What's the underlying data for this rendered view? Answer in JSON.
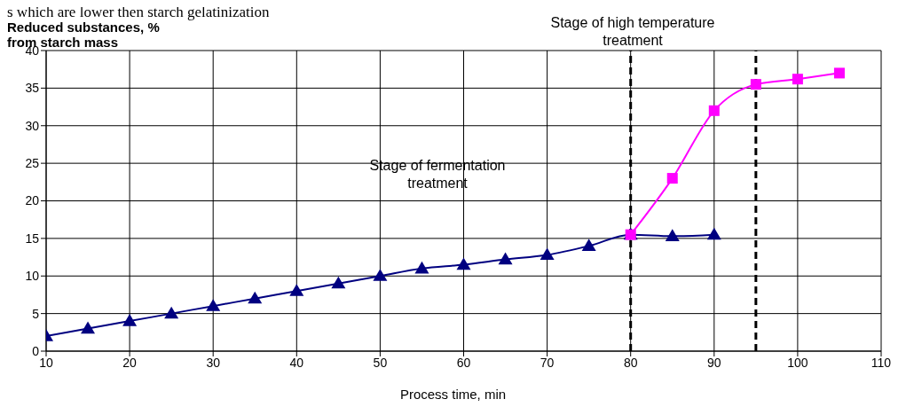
{
  "chart_data": {
    "type": "line",
    "xlabel": "Process time, min",
    "ylabel": "Reduced substances, % from starch mass",
    "annotations": [
      "s which are lower then starch gelatinization",
      "Stage of high temperature treatment",
      "Stage of fermentation treatment"
    ],
    "series": [
      {
        "color": "#000080",
        "marker": "triangle",
        "x": [
          10,
          15,
          20,
          25,
          30,
          35,
          40,
          45,
          50,
          55,
          60,
          65,
          70,
          75,
          80,
          85,
          90
        ],
        "values": [
          2,
          3,
          4,
          5,
          6,
          7,
          8,
          9,
          10,
          11,
          11.5,
          12.2,
          12.8,
          14,
          15.5,
          15.3,
          15.5
        ]
      },
      {
        "color": "#ff00ff",
        "marker": "square",
        "x": [
          80,
          85,
          90,
          95,
          100,
          105
        ],
        "values": [
          15.5,
          23,
          32,
          35.5,
          36.2,
          37
        ]
      }
    ],
    "xlim": [
      10,
      110
    ],
    "xticks": [
      10,
      20,
      30,
      40,
      50,
      60,
      70,
      80,
      90,
      100,
      110
    ],
    "ylim": [
      0,
      40
    ],
    "yticks": [
      0,
      5,
      10,
      15,
      20,
      25,
      30,
      35,
      40
    ],
    "grid": true,
    "line_style": "solid",
    "ref_lines": [
      {
        "axis": "x",
        "value": 80,
        "color": "#000000",
        "line_style": "dashed"
      },
      {
        "axis": "x",
        "value": 95,
        "color": "#000000",
        "line_style": "dashed"
      }
    ]
  }
}
